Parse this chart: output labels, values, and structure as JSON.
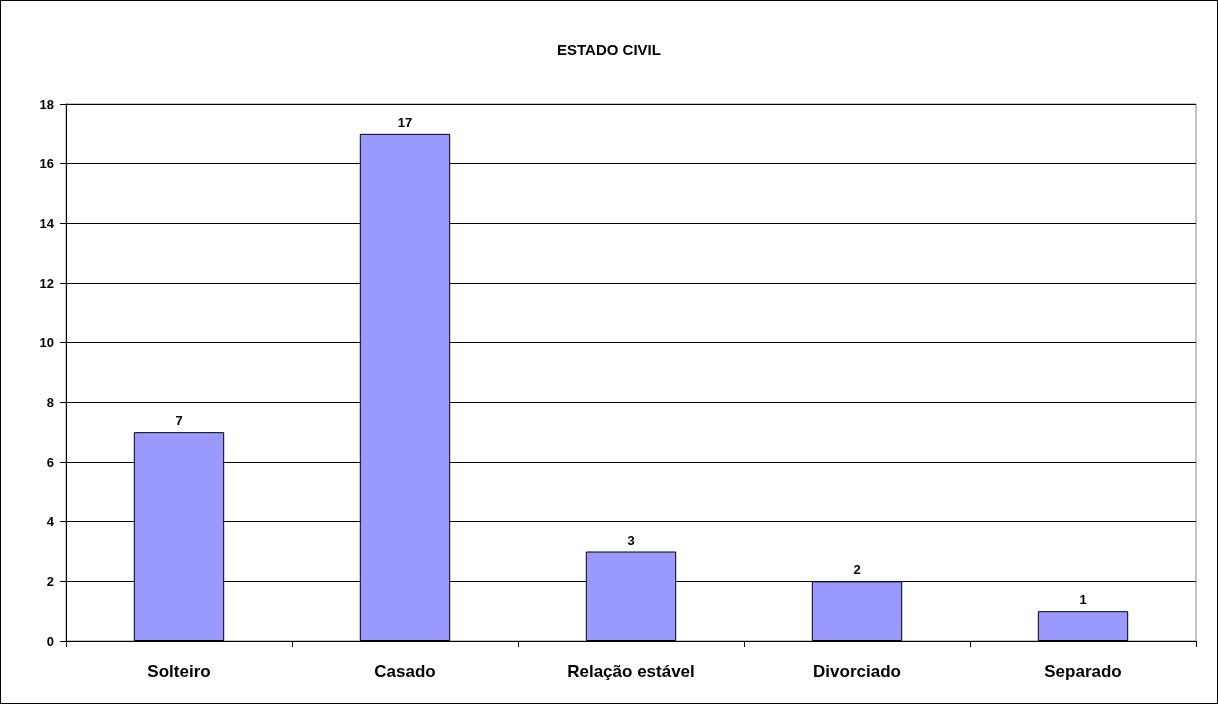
{
  "chart_data": {
    "type": "bar",
    "title": "ESTADO CIVIL",
    "categories": [
      "Solteiro",
      "Casado",
      "Relação estável",
      "Divorciado",
      "Separado"
    ],
    "values": [
      7,
      17,
      3,
      2,
      1
    ],
    "color": "#9999ff",
    "ylim": [
      0,
      18
    ],
    "yticks": [
      0,
      2,
      4,
      6,
      8,
      10,
      12,
      14,
      16,
      18
    ],
    "grid": "y",
    "data_labels": true
  }
}
